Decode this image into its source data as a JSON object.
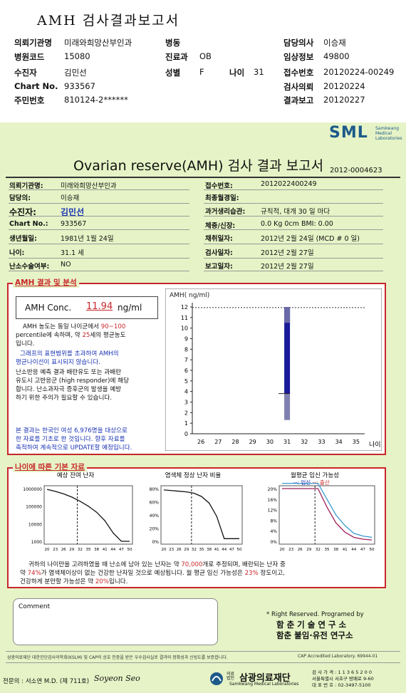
{
  "header": {
    "title": "AMH 검사결과보고서",
    "rows": [
      [
        {
          "l": "의뢰기관명",
          "v": "미래와희망산부인과"
        },
        {
          "l": "병동",
          "v": ""
        },
        {
          "l": "담당의사",
          "v": "이승재"
        }
      ],
      [
        {
          "l": "병원코드",
          "v": "15080"
        },
        {
          "l": "진료과",
          "v": "OB"
        },
        {
          "l": "임상정보",
          "v": "49800"
        }
      ],
      [
        {
          "l": "수진자",
          "v": "김민선"
        },
        {
          "l": "성별",
          "v": "F"
        },
        {
          "l": "접수번호",
          "v": "20120224-00249"
        }
      ],
      [
        {
          "l": "Chart No.",
          "v": "933567"
        },
        {
          "l": "",
          "v": ""
        },
        {
          "l": "검사의뢰",
          "v": "20120224"
        }
      ],
      [
        {
          "l": "주민번호",
          "v": "810124-2******"
        },
        {
          "l": "",
          "v": ""
        },
        {
          "l": "결과보고",
          "v": "20120227"
        }
      ]
    ],
    "age_label": "나이",
    "age_value": "31"
  },
  "logo": {
    "text": "SML",
    "sub1": "Samkwang",
    "sub2": "Medical",
    "sub3": "Laboratories"
  },
  "report": {
    "title": "Ovarian reserve(AMH) 검사 결과 보고서",
    "number": "2012-0004623",
    "left": [
      {
        "l": "의뢰기관명:",
        "v": "미래와희망산부인과"
      },
      {
        "l": "담당의:",
        "v": "이승재"
      },
      {
        "l": "수진자:",
        "v": "김민선"
      },
      {
        "l": "Chart No.:",
        "v": "933567"
      },
      {
        "l": "생년월일:",
        "v": "1981년 1월 24일"
      },
      {
        "l": "나이:",
        "v": "31.1 세"
      },
      {
        "l": "난소수술여부:",
        "v": "NO"
      }
    ],
    "right": [
      {
        "l": "접수번호:",
        "v": "2012022400249"
      },
      {
        "l": "최종월경일:",
        "v": ""
      },
      {
        "l": "과거생리습관:",
        "v": "규칙적, 대개   30 일 마다"
      },
      {
        "l": "체중/신장:",
        "v": "0.0 Kg      0cm    BMI:     0.00"
      },
      {
        "l": "채취일자:",
        "v": "2012년 2월 24일   (MCD #  0 일)"
      },
      {
        "l": "검사일자:",
        "v": "2012년 2월 27일"
      },
      {
        "l": "보고일자:",
        "v": "2012년 2월 27일"
      }
    ]
  },
  "amh": {
    "section_title": "AMH 결과 및 분석",
    "label": "AMH Conc.",
    "value": "11.94",
    "unit": "ng/ml",
    "p1a": "AMH 농도는 동일 나이군에서",
    "p1b": "90~100",
    "p1c": "percentile에 속하며, 약",
    "p1d": "25",
    "p1e": "세의 평균농도",
    "p1f": "입니다.",
    "p2a": "그래프의 표현범위를 초과하여 AMH의",
    "p2b": "평균나이선이 표시되지 않습니다.",
    "p3a": "난소반응 예측 결과 배란유도 또는 과배란",
    "p3b": "유도시 고반응군 (high responder)에 해당",
    "p3c": "합니다. 난소과자극 증후군의 발생을 예방",
    "p3d": "하기 위한 주의가 필요할 수 있습니다.",
    "p4a": "본 결과는 한국인 여성 6,976명을 대상으로",
    "p4b": "한 자료를 기초로 한 것입니다. 향후 자료를",
    "p4c": "축적하여 계속적으로 UPDATE할 예정입니다."
  },
  "chart_data": [
    {
      "type": "bar",
      "title": "",
      "ylabel": "AMH( ng/ml)",
      "xlabel": "나이",
      "x": [
        26,
        27,
        28,
        29,
        30,
        31,
        32,
        33,
        34,
        35
      ],
      "ylim": [
        0,
        12
      ],
      "yticks": [
        0,
        1,
        2,
        3,
        4,
        5,
        6,
        7,
        8,
        9,
        10,
        11,
        12
      ],
      "value_line": 11.94,
      "bar": {
        "x": 31,
        "low": 1.3,
        "q1": 3.8,
        "q3": 12,
        "high": 12
      },
      "colors": {
        "bar": "#1a1a9a",
        "upper": "#6a6aa8",
        "lower": "#8080b0"
      }
    },
    {
      "type": "line",
      "title": "예상 잔여 난자",
      "y_scale": "log",
      "yticks": [
        "1000000",
        "100000",
        "10000",
        "1000"
      ],
      "x": [
        20,
        23,
        26,
        29,
        32,
        35,
        38,
        41,
        44,
        47,
        50
      ],
      "series": [
        {
          "values": [
            900000,
            700000,
            500000,
            330000,
            190000,
            100000,
            45000,
            15000,
            3000,
            800,
            200
          ]
        }
      ],
      "marker_x": 31
    },
    {
      "type": "line",
      "title": "염색체 정상 난자 비율",
      "yticks": [
        "80%",
        "60%",
        "40%",
        "20%",
        "0%"
      ],
      "x": [
        20,
        23,
        26,
        29,
        32,
        35,
        38,
        41,
        44,
        47,
        50
      ],
      "series": [
        {
          "values": [
            78,
            77,
            76,
            75,
            73,
            68,
            58,
            38,
            4,
            4,
            4
          ]
        }
      ],
      "marker_x": 31
    },
    {
      "type": "line",
      "title": "월평균 임신 가능성",
      "legend1": "--: 임신",
      "legend2": "--: 출산",
      "yticks": [
        "20%",
        "16%",
        "12%",
        "8%",
        "4%",
        "0%"
      ],
      "x": [
        20,
        23,
        26,
        29,
        32,
        35,
        38,
        41,
        44,
        47,
        50
      ],
      "series": [
        {
          "name": "임신",
          "values": [
            22,
            22,
            22,
            22,
            22,
            16,
            10,
            6,
            3,
            2,
            1.5
          ]
        },
        {
          "name": "출산",
          "values": [
            20,
            20,
            20,
            20,
            20,
            13,
            7,
            3.5,
            1.5,
            0.8,
            0.5
          ]
        }
      ],
      "marker_x": 31
    }
  ],
  "age_section": {
    "title": "나이에 따른 기본 자료",
    "s1": "귀하의 나이만을 고려하였을 때 난소에 남아 있는 난자는 약",
    "s2": "70,000",
    "s3": "개로 추정되며, 배란되는 난자 중",
    "s4": "약",
    "s5": "74%",
    "s6": "가 염색체이상이 없는 건강한 난자일 것으로 예상됩니다. 월 평균 임신 가능성은",
    "s7": "23%",
    "s8": "정도이고,",
    "s9": "건강하게 분만할 가능성은 약",
    "s10": "20%",
    "s11": "입니다."
  },
  "comment_label": "Comment",
  "rights": {
    "line1": "* Right Reserved. Programed by",
    "line2": "함 춘 기 술 연 구 소",
    "line3": "함춘 불임·유전 연구소"
  },
  "footer": {
    "cert": "삼광의료재단 대한진단검사의학회(KSLM) 및 CAP의 상호 인증을 받은 우수검사실로 결과의 정확성과 신빙도를 보증합니다.",
    "cap": "CAP  Accredited  Laboratory.  69944-01",
    "doctor": "전문의 : 서소연 M.D. (제 711호)",
    "signature": "Soyeon Seo",
    "foundation": "삼광의료재단",
    "foundation_pre": "의료 법인",
    "foundation_en": "Samkwang Medical Laboratories",
    "phone": "검 사 가 격 : 1 1 3 6 5 2 0 0",
    "addr": "서울특별시 서초구 방배로 9-60",
    "tel": "대 표 번 호 : 02-3497-5100"
  }
}
